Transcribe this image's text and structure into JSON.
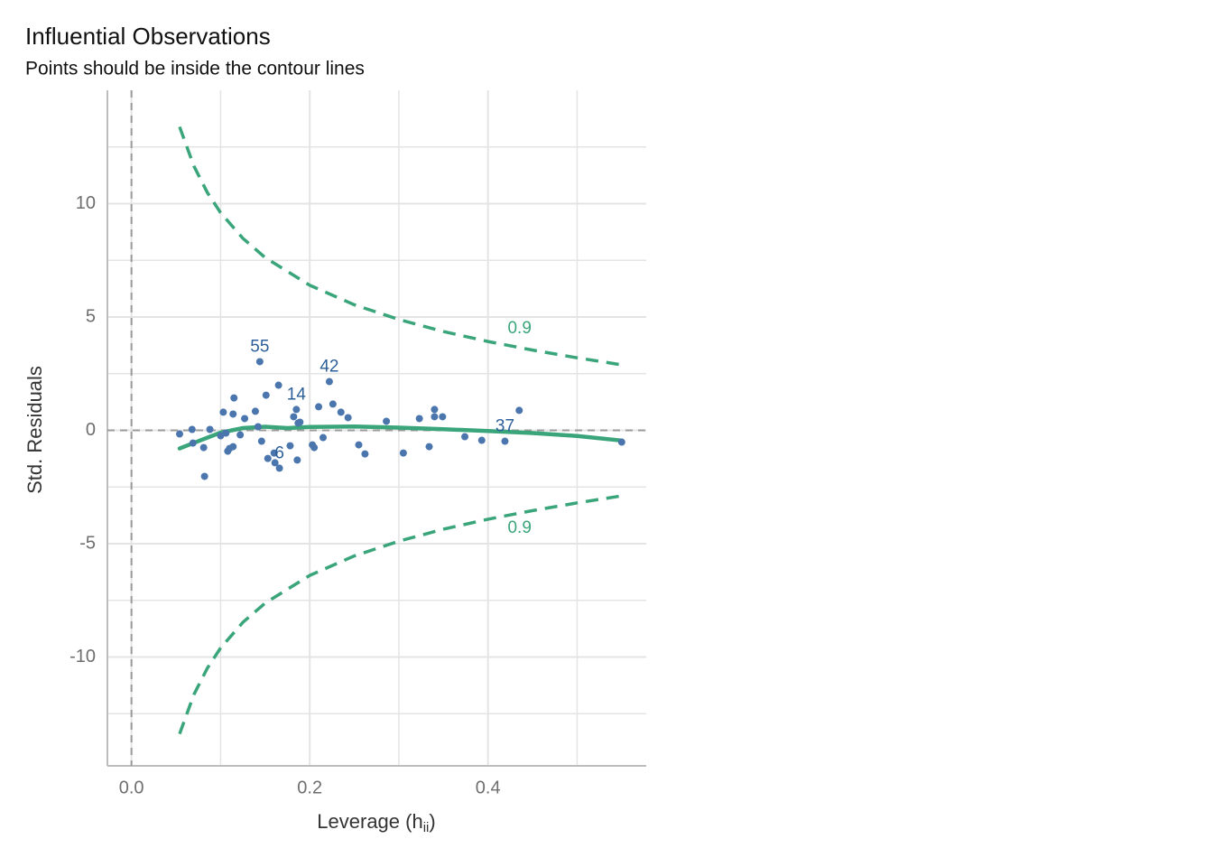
{
  "chart_data": {
    "type": "scatter",
    "title": "Influential Observations",
    "subtitle": "Points should be inside the contour lines",
    "xlabel_parts": [
      "Leverage (h",
      "ii",
      ")"
    ],
    "ylabel": "Std. Residuals",
    "xlim": [
      -0.027,
      0.5775
    ],
    "ylim": [
      -14.8,
      15
    ],
    "xticks": [
      {
        "value": 0,
        "label": "0.0"
      },
      0.2,
      0.4
    ],
    "yticks": [
      -10,
      -5,
      0,
      5,
      10
    ],
    "x_minor_grid": [
      0.1,
      0.3,
      0.5
    ],
    "y_minor_grid": [
      -12.5,
      -7.5,
      -2.5,
      2.5,
      7.5,
      12.5
    ],
    "grid": true,
    "vline": 0,
    "hline": 0,
    "points": {
      "color": "#4a76ad",
      "label_color": "#2c5f99",
      "x": [
        0.054,
        0.068,
        0.069,
        0.081,
        0.082,
        0.088,
        0.1,
        0.103,
        0.106,
        0.108,
        0.11,
        0.114,
        0.115,
        0.114,
        0.122,
        0.127,
        0.139,
        0.142,
        0.144,
        0.146,
        0.151,
        0.153,
        0.16,
        0.161,
        0.166,
        0.165,
        0.178,
        0.182,
        0.185,
        0.187,
        0.186,
        0.189,
        0.203,
        0.205,
        0.21,
        0.215,
        0.222,
        0.226,
        0.235,
        0.243,
        0.255,
        0.262,
        0.286,
        0.305,
        0.323,
        0.334,
        0.34,
        0.34,
        0.349,
        0.374,
        0.393,
        0.419,
        0.435,
        0.55
      ],
      "values": [
        -0.16,
        0.04,
        -0.56,
        -0.76,
        -2.03,
        0.04,
        -0.24,
        0.8,
        -0.12,
        -0.92,
        -0.8,
        -0.72,
        1.43,
        0.72,
        -0.2,
        0.52,
        0.84,
        0.16,
        3.03,
        -0.48,
        1.55,
        -1.24,
        -1.0,
        -1.43,
        -1.67,
        1.99,
        -0.68,
        0.6,
        0.92,
        0.32,
        -1.31,
        0.36,
        -0.64,
        -0.76,
        1.04,
        -0.32,
        2.15,
        1.16,
        0.8,
        0.56,
        -0.64,
        -1.04,
        0.4,
        -1.0,
        0.52,
        -0.72,
        0.92,
        0.6,
        0.6,
        -0.28,
        -0.44,
        -0.48,
        0.88,
        -0.52
      ],
      "labels": [
        null,
        null,
        null,
        null,
        null,
        null,
        null,
        null,
        null,
        null,
        null,
        null,
        null,
        null,
        null,
        null,
        null,
        null,
        "55",
        null,
        null,
        null,
        null,
        null,
        "6",
        null,
        null,
        null,
        "14",
        null,
        null,
        null,
        null,
        null,
        null,
        null,
        "42",
        null,
        null,
        null,
        null,
        null,
        null,
        null,
        null,
        null,
        null,
        null,
        null,
        null,
        null,
        "37",
        null,
        null
      ]
    },
    "smooth": {
      "color": "#3aa57a",
      "x": [
        0.054,
        0.08,
        0.1,
        0.125,
        0.15,
        0.175,
        0.2,
        0.25,
        0.3,
        0.35,
        0.4,
        0.45,
        0.5,
        0.55
      ],
      "values": [
        -0.8,
        -0.4,
        -0.1,
        0.1,
        0.16,
        0.1,
        0.15,
        0.17,
        0.12,
        0.05,
        -0.03,
        -0.12,
        -0.25,
        -0.45
      ]
    },
    "contours": [
      {
        "color": "#3aa57a",
        "label": "0.9",
        "x": [
          0.054,
          0.07,
          0.085,
          0.1,
          0.125,
          0.15,
          0.2,
          0.25,
          0.3,
          0.35,
          0.4,
          0.45,
          0.5,
          0.55
        ],
        "values": [
          13.39,
          11.66,
          10.5,
          9.6,
          8.47,
          7.62,
          6.4,
          5.54,
          4.89,
          4.36,
          3.92,
          3.54,
          3.2,
          2.89
        ]
      },
      {
        "color": "#3aa57a",
        "label": "0.9",
        "x": [
          0.054,
          0.07,
          0.085,
          0.1,
          0.125,
          0.15,
          0.2,
          0.25,
          0.3,
          0.35,
          0.4,
          0.45,
          0.5,
          0.55
        ],
        "values": [
          -13.39,
          -11.66,
          -10.5,
          -9.6,
          -8.47,
          -7.62,
          -6.4,
          -5.54,
          -4.89,
          -4.36,
          -3.92,
          -3.54,
          -3.2,
          -2.89
        ]
      }
    ]
  }
}
